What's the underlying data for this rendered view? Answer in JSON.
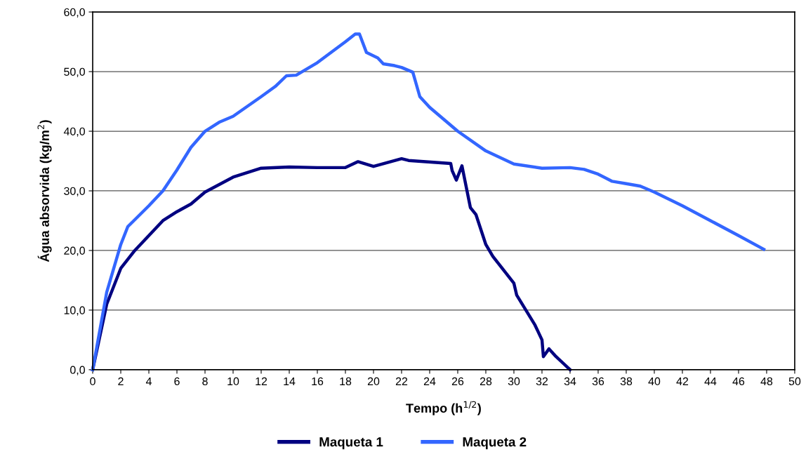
{
  "chart_data": {
    "type": "line",
    "xlabel": "Tempo (h$^{1/2}$)",
    "ylabel": "Água absorvida (kg/m$^{2}$)",
    "xlim": [
      0,
      50
    ],
    "xticks": [
      0,
      2,
      4,
      6,
      8,
      10,
      12,
      14,
      16,
      18,
      20,
      22,
      24,
      26,
      28,
      30,
      32,
      34,
      36,
      38,
      40,
      42,
      44,
      46,
      48,
      50
    ],
    "ylim": [
      0,
      60
    ],
    "yticks": [
      {
        "value": 0,
        "label": "0,0"
      },
      {
        "value": 10,
        "label": "10,0"
      },
      {
        "value": 20,
        "label": "20,0"
      },
      {
        "value": 30,
        "label": "30,0"
      },
      {
        "value": 40,
        "label": "40,0"
      },
      {
        "value": 50,
        "label": "50,0"
      },
      {
        "value": 60,
        "label": "60,0"
      }
    ],
    "grid": "y",
    "legend": "bottom",
    "marker": "none",
    "line_style": "solid",
    "series": [
      {
        "name": "Maqueta 1",
        "color": "#000080",
        "x": [
          0,
          1,
          2,
          3,
          4,
          5,
          6,
          7,
          8,
          10,
          12,
          14,
          16,
          18,
          18.9,
          20,
          22,
          22.5,
          25.5,
          25.6,
          25.9,
          26.3,
          26.9,
          27.3,
          28,
          28.5,
          30,
          30.2,
          31.5,
          32,
          32.1,
          32.5,
          33,
          34
        ],
        "values": [
          0,
          11,
          17,
          20,
          22.5,
          25,
          26.5,
          27.8,
          29.8,
          32.3,
          33.8,
          34,
          33.9,
          33.9,
          34.9,
          34.1,
          35.4,
          35.1,
          34.6,
          33.4,
          31.8,
          34.2,
          27.2,
          26,
          21,
          19,
          14.5,
          12.5,
          7.5,
          5,
          2.2,
          3.5,
          2.2,
          0
        ]
      },
      {
        "name": "Maqueta 2",
        "color": "#3366ff",
        "x": [
          0,
          1,
          2,
          2.5,
          4,
          5,
          6,
          7,
          8,
          9,
          10,
          12,
          13,
          13.8,
          14.5,
          16,
          18,
          18.7,
          19,
          19.5,
          20.3,
          20.7,
          21.5,
          22,
          22.8,
          23.3,
          24,
          26,
          28,
          30,
          32,
          34,
          35,
          36,
          37,
          38,
          39,
          40,
          42,
          44,
          46,
          47.8
        ],
        "values": [
          0,
          13,
          21,
          24,
          27.5,
          30,
          33.5,
          37.3,
          40,
          41.5,
          42.5,
          45.8,
          47.5,
          49.3,
          49.4,
          51.5,
          55,
          56.3,
          56.3,
          53.2,
          52.3,
          51.3,
          51,
          50.7,
          49.9,
          45.8,
          44,
          40,
          36.7,
          34.5,
          33.8,
          33.9,
          33.6,
          32.8,
          31.6,
          31.2,
          30.8,
          29.8,
          27.5,
          25,
          22.5,
          20.2
        ]
      }
    ]
  }
}
